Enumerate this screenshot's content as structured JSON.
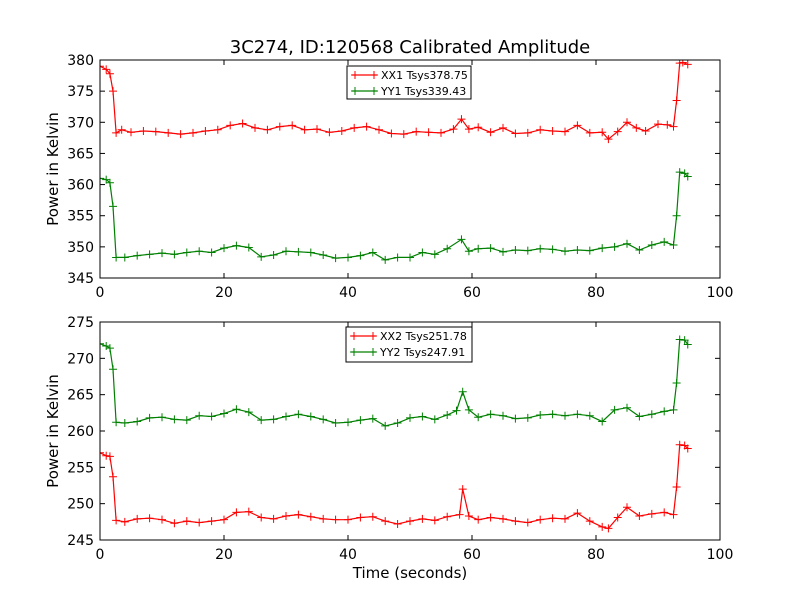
{
  "chart_data": [
    {
      "type": "line",
      "title": "3C274, ID:120568 Calibrated Amplitude",
      "xlabel": "",
      "ylabel": "Power in Kelvin",
      "xlim": [
        0,
        100
      ],
      "ylim": [
        345,
        380
      ],
      "xticks": [
        "0",
        "20",
        "40",
        "60",
        "80",
        "100"
      ],
      "yticks": [
        "345",
        "350",
        "355",
        "360",
        "365",
        "370",
        "375",
        "380"
      ],
      "legend_position": "top-center",
      "grid": false,
      "series": [
        {
          "name": "XX1 Tsys378.75",
          "color": "#ff0000",
          "points": [
            [
              0,
              379
            ],
            [
              1,
              378.5
            ],
            [
              1.6,
              377.8
            ],
            [
              2.1,
              375
            ],
            [
              2.6,
              368.3
            ],
            [
              3.5,
              368.8
            ],
            [
              5,
              368.4
            ],
            [
              7,
              368.6
            ],
            [
              9,
              368.5
            ],
            [
              11,
              368.3
            ],
            [
              13,
              368.1
            ],
            [
              15,
              368.3
            ],
            [
              17,
              368.6
            ],
            [
              19,
              368.8
            ],
            [
              21,
              369.5
            ],
            [
              23,
              369.8
            ],
            [
              25,
              369.1
            ],
            [
              27,
              368.8
            ],
            [
              29,
              369.3
            ],
            [
              31,
              369.5
            ],
            [
              33,
              368.8
            ],
            [
              35,
              368.9
            ],
            [
              37,
              368.4
            ],
            [
              39,
              368.6
            ],
            [
              41,
              369.1
            ],
            [
              43,
              369.3
            ],
            [
              45,
              368.8
            ],
            [
              47,
              368.2
            ],
            [
              49,
              368.1
            ],
            [
              51,
              368.5
            ],
            [
              53,
              368.4
            ],
            [
              55,
              368.3
            ],
            [
              57,
              368.9
            ],
            [
              58.3,
              370.5
            ],
            [
              59.5,
              368.9
            ],
            [
              61,
              369.2
            ],
            [
              63,
              368.4
            ],
            [
              65,
              369.1
            ],
            [
              67,
              368.2
            ],
            [
              69,
              368.3
            ],
            [
              71,
              368.8
            ],
            [
              73,
              368.6
            ],
            [
              75,
              368.5
            ],
            [
              77,
              369.5
            ],
            [
              79,
              368.3
            ],
            [
              81,
              368.4
            ],
            [
              82,
              367.3
            ],
            [
              83.5,
              368.5
            ],
            [
              85,
              370
            ],
            [
              86.5,
              369.1
            ],
            [
              88,
              368.6
            ],
            [
              90,
              369.7
            ],
            [
              91.5,
              369.6
            ],
            [
              92.5,
              369.3
            ],
            [
              93,
              373.5
            ],
            [
              93.5,
              379.5
            ],
            [
              94,
              379.6
            ],
            [
              94.8,
              379.3
            ]
          ]
        },
        {
          "name": "YY1 Tsys339.43",
          "color": "#008000",
          "points": [
            [
              0,
              361
            ],
            [
              1,
              360.8
            ],
            [
              1.6,
              360.3
            ],
            [
              2.1,
              356.5
            ],
            [
              2.6,
              348.3
            ],
            [
              4,
              348.3
            ],
            [
              6,
              348.6
            ],
            [
              8,
              348.8
            ],
            [
              10,
              349
            ],
            [
              12,
              348.8
            ],
            [
              14,
              349.1
            ],
            [
              16,
              349.3
            ],
            [
              18,
              349.1
            ],
            [
              20,
              349.8
            ],
            [
              22,
              350.2
            ],
            [
              24,
              349.9
            ],
            [
              26,
              348.4
            ],
            [
              28,
              348.7
            ],
            [
              30,
              349.3
            ],
            [
              32,
              349.2
            ],
            [
              34,
              349.1
            ],
            [
              36,
              348.7
            ],
            [
              38,
              348.2
            ],
            [
              40,
              348.3
            ],
            [
              42,
              348.6
            ],
            [
              44,
              349.1
            ],
            [
              46,
              347.9
            ],
            [
              48,
              348.3
            ],
            [
              50,
              348.3
            ],
            [
              52,
              349.1
            ],
            [
              54,
              348.8
            ],
            [
              56,
              349.7
            ],
            [
              58.3,
              351.2
            ],
            [
              59.5,
              349.3
            ],
            [
              61,
              349.7
            ],
            [
              63,
              349.8
            ],
            [
              65,
              349.2
            ],
            [
              67,
              349.5
            ],
            [
              69,
              349.4
            ],
            [
              71,
              349.7
            ],
            [
              73,
              349.6
            ],
            [
              75,
              349.3
            ],
            [
              77,
              349.5
            ],
            [
              79,
              349.4
            ],
            [
              81,
              349.8
            ],
            [
              83,
              350
            ],
            [
              85,
              350.5
            ],
            [
              87,
              349.5
            ],
            [
              89,
              350.3
            ],
            [
              91,
              350.8
            ],
            [
              92.5,
              350.3
            ],
            [
              93,
              355
            ],
            [
              93.5,
              362
            ],
            [
              94.3,
              361.8
            ],
            [
              94.8,
              361.3
            ]
          ]
        }
      ]
    },
    {
      "type": "line",
      "title": "",
      "xlabel": "Time (seconds)",
      "ylabel": "Power in Kelvin",
      "xlim": [
        0,
        100
      ],
      "ylim": [
        245,
        275
      ],
      "xticks": [
        "0",
        "20",
        "40",
        "60",
        "80",
        "100"
      ],
      "yticks": [
        "245",
        "250",
        "255",
        "260",
        "265",
        "270",
        "275"
      ],
      "legend_position": "top-center",
      "grid": false,
      "series": [
        {
          "name": "XX2 Tsys251.78",
          "color": "#ff0000",
          "points": [
            [
              0,
              257
            ],
            [
              1,
              256.6
            ],
            [
              1.6,
              256.5
            ],
            [
              2.1,
              253.7
            ],
            [
              2.6,
              247.7
            ],
            [
              4,
              247.5
            ],
            [
              6,
              247.9
            ],
            [
              8,
              248
            ],
            [
              10,
              247.8
            ],
            [
              12,
              247.3
            ],
            [
              14,
              247.6
            ],
            [
              16,
              247.4
            ],
            [
              18,
              247.6
            ],
            [
              20,
              247.8
            ],
            [
              22,
              248.8
            ],
            [
              24,
              248.9
            ],
            [
              26,
              248.1
            ],
            [
              28,
              247.9
            ],
            [
              30,
              248.3
            ],
            [
              32,
              248.5
            ],
            [
              34,
              248.2
            ],
            [
              36,
              247.9
            ],
            [
              38,
              247.8
            ],
            [
              40,
              247.8
            ],
            [
              42,
              248.1
            ],
            [
              44,
              248.2
            ],
            [
              46,
              247.6
            ],
            [
              48,
              247.2
            ],
            [
              50,
              247.6
            ],
            [
              52,
              247.9
            ],
            [
              54,
              247.7
            ],
            [
              56,
              248.2
            ],
            [
              58,
              248.5
            ],
            [
              58.5,
              252
            ],
            [
              59.5,
              248.3
            ],
            [
              61,
              247.8
            ],
            [
              63,
              248.1
            ],
            [
              65,
              247.9
            ],
            [
              67,
              247.6
            ],
            [
              69,
              247.4
            ],
            [
              71,
              247.8
            ],
            [
              73,
              248
            ],
            [
              75,
              247.9
            ],
            [
              77,
              248.7
            ],
            [
              79,
              247.6
            ],
            [
              81,
              246.8
            ],
            [
              82,
              246.6
            ],
            [
              83.5,
              248.1
            ],
            [
              85,
              249.5
            ],
            [
              87,
              248.3
            ],
            [
              89,
              248.6
            ],
            [
              91,
              248.8
            ],
            [
              92.5,
              248.5
            ],
            [
              93,
              252.3
            ],
            [
              93.5,
              258.1
            ],
            [
              94.3,
              258
            ],
            [
              94.8,
              257.6
            ]
          ]
        },
        {
          "name": "YY2 Tsys247.91",
          "color": "#008000",
          "points": [
            [
              0,
              272
            ],
            [
              1,
              271.7
            ],
            [
              1.6,
              271.4
            ],
            [
              2.1,
              268.5
            ],
            [
              2.6,
              261.2
            ],
            [
              4,
              261.1
            ],
            [
              6,
              261.3
            ],
            [
              8,
              261.8
            ],
            [
              10,
              261.9
            ],
            [
              12,
              261.6
            ],
            [
              14,
              261.5
            ],
            [
              16,
              262.1
            ],
            [
              18,
              262
            ],
            [
              20,
              262.4
            ],
            [
              22,
              263
            ],
            [
              24,
              262.6
            ],
            [
              26,
              261.5
            ],
            [
              28,
              261.6
            ],
            [
              30,
              262
            ],
            [
              32,
              262.3
            ],
            [
              34,
              262
            ],
            [
              36,
              261.6
            ],
            [
              38,
              261.1
            ],
            [
              40,
              261.2
            ],
            [
              42,
              261.5
            ],
            [
              44,
              261.7
            ],
            [
              46,
              260.7
            ],
            [
              48,
              261.1
            ],
            [
              50,
              261.8
            ],
            [
              52,
              262
            ],
            [
              54,
              261.6
            ],
            [
              56,
              262.2
            ],
            [
              57.5,
              262.8
            ],
            [
              58.5,
              265.4
            ],
            [
              59.5,
              262.9
            ],
            [
              61,
              261.9
            ],
            [
              63,
              262.3
            ],
            [
              65,
              262.1
            ],
            [
              67,
              261.7
            ],
            [
              69,
              261.8
            ],
            [
              71,
              262.2
            ],
            [
              73,
              262.3
            ],
            [
              75,
              262.1
            ],
            [
              77,
              262.3
            ],
            [
              79,
              262.1
            ],
            [
              81,
              261.3
            ],
            [
              83,
              262.9
            ],
            [
              85,
              263.2
            ],
            [
              87,
              262
            ],
            [
              89,
              262.3
            ],
            [
              91,
              262.7
            ],
            [
              92.5,
              262.9
            ],
            [
              93,
              266.6
            ],
            [
              93.5,
              272.6
            ],
            [
              94.3,
              272.5
            ],
            [
              94.8,
              271.9
            ]
          ]
        }
      ]
    }
  ]
}
